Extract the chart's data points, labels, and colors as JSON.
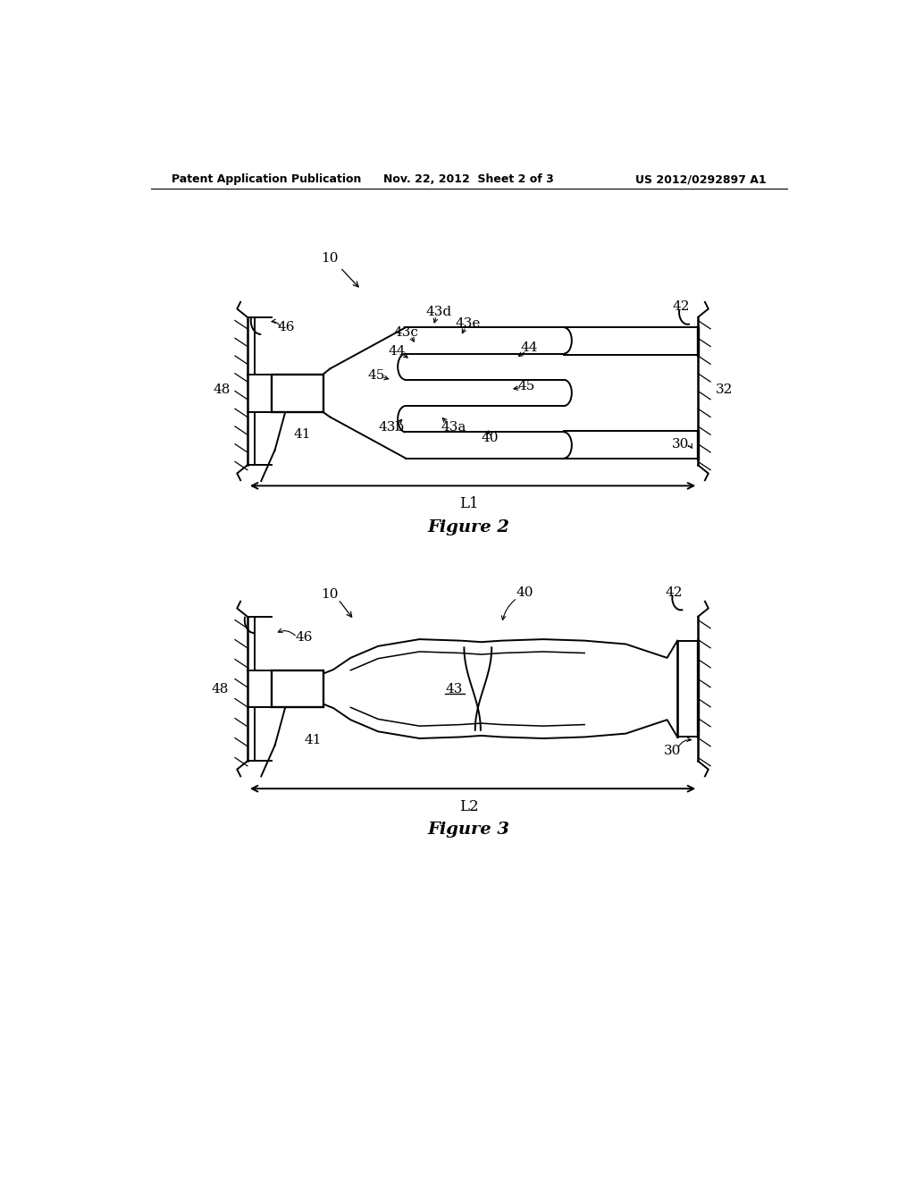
{
  "header_left": "Patent Application Publication",
  "header_mid": "Nov. 22, 2012  Sheet 2 of 3",
  "header_right": "US 2012/0292897 A1",
  "fig2_caption": "Figure 2",
  "fig3_caption": "Figure 3",
  "bg_color": "#ffffff",
  "line_color": "#000000"
}
